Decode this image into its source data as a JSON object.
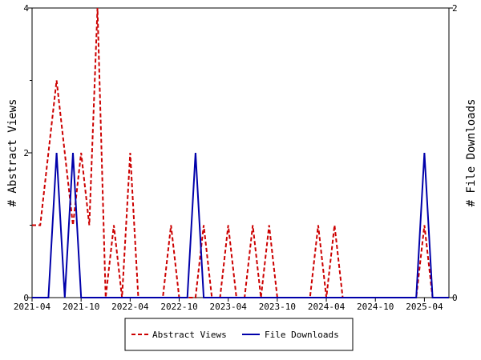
{
  "chart_data": {
    "type": "line",
    "x_labels": [
      "2021-04",
      "2021-10",
      "2022-04",
      "2022-10",
      "2023-04",
      "2023-10",
      "2024-04",
      "2024-10",
      "2025-04"
    ],
    "ylabel_left": "# Abstract Views",
    "ylabel_right": "# File Downloads",
    "ylim_left": [
      0,
      4
    ],
    "ylim_right": [
      0,
      2
    ],
    "yticks_left": [
      "0",
      "2",
      "4"
    ],
    "yticks_right": [
      "0",
      "2"
    ],
    "legend_position": "bottom-center",
    "series": [
      {
        "name": "Abstract Views",
        "axis": "left",
        "color": "#cc0000",
        "style": "dashed",
        "values": [
          1,
          1,
          2,
          3,
          2,
          1,
          2,
          1,
          4,
          0,
          1,
          0,
          2,
          0,
          0,
          0,
          0,
          1,
          0,
          0,
          0,
          1,
          0,
          0,
          1,
          0,
          0,
          1,
          0,
          1,
          0,
          0,
          0,
          0,
          0,
          1,
          0,
          1,
          0,
          0,
          0,
          0,
          0,
          0,
          0,
          0,
          0,
          0,
          1,
          0,
          0,
          0
        ]
      },
      {
        "name": "File Downloads",
        "axis": "right",
        "color": "#0000aa",
        "style": "solid",
        "values": [
          0,
          0,
          0,
          1,
          0,
          1,
          0,
          0,
          0,
          0,
          0,
          0,
          0,
          0,
          0,
          0,
          0,
          0,
          0,
          0,
          1,
          0,
          0,
          0,
          0,
          0,
          0,
          0,
          0,
          0,
          0,
          0,
          0,
          0,
          0,
          0,
          0,
          0,
          0,
          0,
          0,
          0,
          0,
          0,
          0,
          0,
          0,
          0,
          1,
          0,
          0,
          0
        ]
      }
    ]
  }
}
